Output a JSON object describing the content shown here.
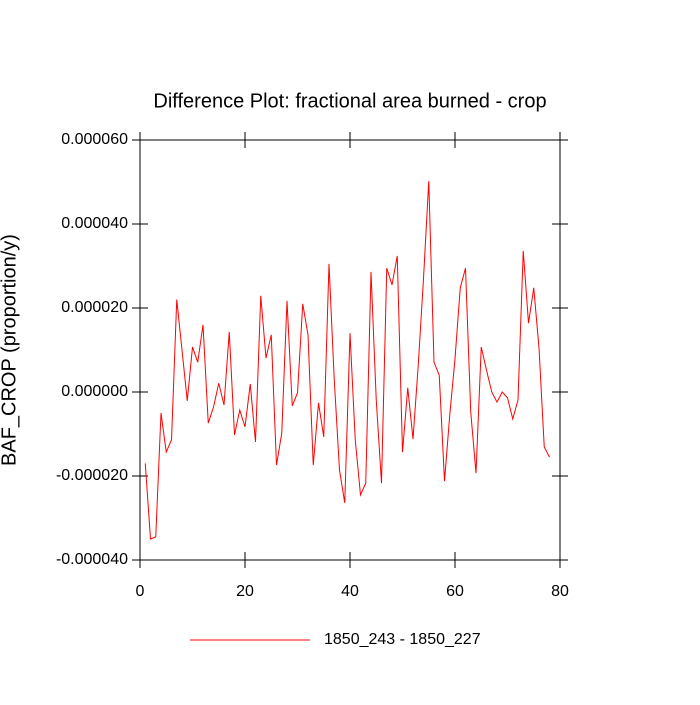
{
  "chart_data": {
    "type": "line",
    "title": "Difference Plot: fractional area burned - crop",
    "y_label": "BAF_CROP  (proportion/y)",
    "x": [
      1,
      2,
      3,
      4,
      5,
      6,
      7,
      8,
      9,
      10,
      11,
      12,
      13,
      14,
      15,
      16,
      17,
      18,
      19,
      20,
      21,
      22,
      23,
      24,
      25,
      26,
      27,
      28,
      29,
      30,
      31,
      32,
      33,
      34,
      35,
      36,
      37,
      38,
      39,
      40,
      41,
      42,
      43,
      44,
      45,
      46,
      47,
      48,
      49,
      50,
      51,
      52,
      53,
      54,
      55,
      56,
      57,
      58,
      59,
      60,
      61,
      62,
      63,
      64,
      65,
      66,
      67,
      68,
      69,
      70,
      71,
      72,
      73,
      74,
      75,
      76,
      77,
      78
    ],
    "series": [
      {
        "name": "1850_243 - 1850_227",
        "color": "#ff0000",
        "values": [
          -1.7e-05,
          -3.5e-05,
          -3.45e-05,
          -5e-06,
          -1.43e-05,
          -1.14e-05,
          2.2e-05,
          1e-05,
          -2.1e-06,
          1.07e-05,
          7.1e-06,
          1.6e-05,
          -7.4e-06,
          -3.6e-06,
          2.1e-06,
          -3.1e-06,
          1.43e-05,
          -1.02e-05,
          -4.3e-06,
          -8.3e-06,
          1.9e-06,
          -1.19e-05,
          2.29e-05,
          8.1e-06,
          1.36e-05,
          -1.74e-05,
          -9.8e-06,
          2.17e-05,
          -3.3e-06,
          -2e-07,
          2.1e-05,
          1.36e-05,
          -1.74e-05,
          -2.6e-06,
          -1.07e-05,
          3.05e-05,
          2.9e-06,
          -1.86e-05,
          -2.64e-05,
          1.4e-05,
          -1.14e-05,
          -2.45e-05,
          -2.17e-05,
          2.86e-05,
          -1.9e-06,
          -2.17e-05,
          2.95e-05,
          2.55e-05,
          3.24e-05,
          -1.43e-05,
          1e-06,
          -1.12e-05,
          6.4e-06,
          2.7e-05,
          5.02e-05,
          7.1e-06,
          4e-06,
          -2.12e-05,
          -5.5e-06,
          7.9e-06,
          2.48e-05,
          2.95e-05,
          -4.8e-06,
          -1.93e-05,
          1.07e-05,
          5.2e-06,
          0.0,
          -2.4e-06,
          0.0,
          -1.4e-06,
          -6.4e-06,
          -1.9e-06,
          3.36e-05,
          1.64e-05,
          2.48e-05,
          1.05e-05,
          -1.31e-05,
          -1.55e-05
        ]
      }
    ],
    "xlim": [
      0,
      80
    ],
    "xticks": [
      0,
      20,
      40,
      60,
      80
    ],
    "ylim": [
      -4e-05,
      6e-05
    ],
    "yticks": [
      {
        "value": -4e-05,
        "label": "-0.000040"
      },
      {
        "value": -2e-05,
        "label": "-0.000020"
      },
      {
        "value": 0,
        "label": "0.000000"
      },
      {
        "value": 2e-05,
        "label": "0.000020"
      },
      {
        "value": 4e-05,
        "label": "0.000040"
      },
      {
        "value": 6e-05,
        "label": "0.000060"
      }
    ]
  }
}
